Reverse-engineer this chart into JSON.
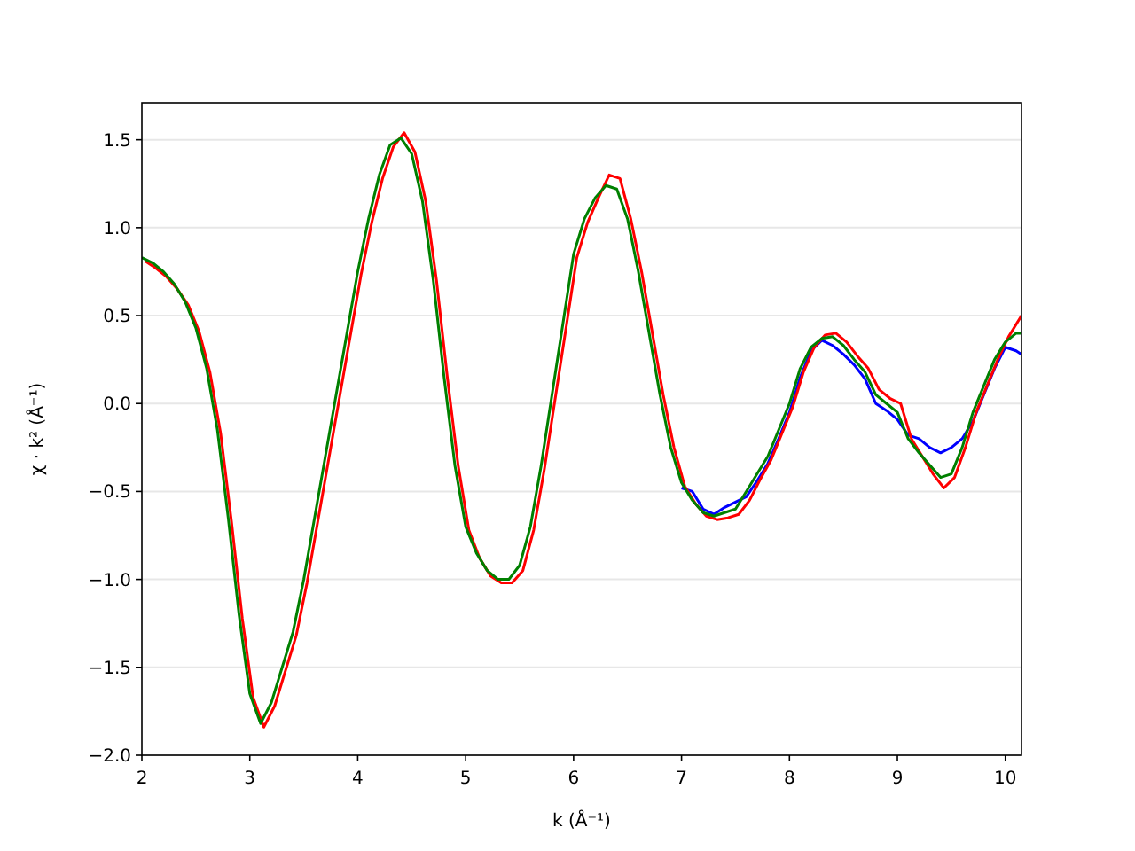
{
  "chart_data": {
    "type": "line",
    "xlabel": "k (Å⁻¹)",
    "ylabel": "χ · k² (Å⁻¹)",
    "x": [
      2.0,
      2.1,
      2.2,
      2.3,
      2.4,
      2.5,
      2.6,
      2.7,
      2.8,
      2.9,
      3.0,
      3.1,
      3.2,
      3.3,
      3.4,
      3.5,
      3.6,
      3.7,
      3.8,
      3.9,
      4.0,
      4.1,
      4.2,
      4.3,
      4.4,
      4.5,
      4.6,
      4.7,
      4.8,
      4.9,
      5.0,
      5.1,
      5.2,
      5.3,
      5.4,
      5.5,
      5.6,
      5.7,
      5.8,
      5.9,
      6.0,
      6.1,
      6.2,
      6.3,
      6.4,
      6.5,
      6.6,
      6.7,
      6.8,
      6.9,
      7.0,
      7.1,
      7.2,
      7.3,
      7.4,
      7.5,
      7.6,
      7.7,
      7.8,
      7.9,
      8.0,
      8.1,
      8.2,
      8.3,
      8.4,
      8.5,
      8.6,
      8.7,
      8.8,
      8.9,
      9.0,
      9.1,
      9.2,
      9.3,
      9.4,
      9.5,
      9.6,
      9.7,
      9.8,
      9.9,
      10.0,
      10.1,
      10.15
    ],
    "series": [
      {
        "color": "#0000ff",
        "values": [
          null,
          null,
          null,
          null,
          null,
          null,
          null,
          null,
          null,
          null,
          null,
          null,
          null,
          null,
          null,
          null,
          null,
          null,
          null,
          null,
          null,
          null,
          null,
          null,
          null,
          null,
          null,
          null,
          null,
          null,
          null,
          null,
          null,
          null,
          null,
          null,
          null,
          null,
          null,
          null,
          null,
          null,
          null,
          null,
          null,
          null,
          null,
          null,
          null,
          null,
          -0.48,
          -0.5,
          -0.6,
          -0.63,
          -0.59,
          -0.56,
          -0.53,
          -0.44,
          -0.34,
          -0.2,
          -0.05,
          0.15,
          0.3,
          0.36,
          0.33,
          0.28,
          0.22,
          0.14,
          0.0,
          -0.04,
          -0.09,
          -0.18,
          -0.2,
          -0.25,
          -0.28,
          -0.25,
          -0.2,
          -0.1,
          0.05,
          0.2,
          0.32,
          0.3,
          0.28
        ]
      },
      {
        "color": "#ff0000",
        "x": [
          2.03,
          2.13,
          2.23,
          2.33,
          2.43,
          2.53,
          2.63,
          2.73,
          2.83,
          2.93,
          3.03,
          3.13,
          3.23,
          3.33,
          3.43,
          3.53,
          3.63,
          3.73,
          3.83,
          3.93,
          4.03,
          4.13,
          4.23,
          4.33,
          4.43,
          4.53,
          4.63,
          4.73,
          4.83,
          4.93,
          5.03,
          5.13,
          5.23,
          5.33,
          5.43,
          5.53,
          5.63,
          5.73,
          5.83,
          5.93,
          6.03,
          6.13,
          6.23,
          6.33,
          6.43,
          6.53,
          6.63,
          6.73,
          6.83,
          6.93,
          7.03,
          7.13,
          7.23,
          7.33,
          7.43,
          7.53,
          7.63,
          7.73,
          7.83,
          7.93,
          8.03,
          8.13,
          8.23,
          8.33,
          8.43,
          8.53,
          8.63,
          8.73,
          8.83,
          8.93,
          9.03,
          9.13,
          9.23,
          9.33,
          9.43,
          9.53,
          9.63,
          9.73,
          9.83,
          9.93,
          10.03,
          10.13,
          10.15
        ],
        "values": [
          0.81,
          0.77,
          0.72,
          0.65,
          0.56,
          0.41,
          0.18,
          -0.17,
          -0.67,
          -1.22,
          -1.67,
          -1.84,
          -1.72,
          -1.52,
          -1.32,
          -1.02,
          -0.67,
          -0.32,
          0.03,
          0.38,
          0.73,
          1.03,
          1.28,
          1.46,
          1.54,
          1.43,
          1.15,
          0.7,
          0.15,
          -0.35,
          -0.72,
          -0.88,
          -0.98,
          -1.02,
          -1.02,
          -0.95,
          -0.72,
          -0.37,
          0.03,
          0.43,
          0.83,
          1.03,
          1.17,
          1.3,
          1.28,
          1.05,
          0.75,
          0.4,
          0.05,
          -0.25,
          -0.47,
          -0.57,
          -0.64,
          -0.66,
          -0.65,
          -0.63,
          -0.55,
          -0.43,
          -0.32,
          -0.17,
          -0.02,
          0.18,
          0.32,
          0.39,
          0.4,
          0.35,
          0.27,
          0.2,
          0.08,
          0.03,
          0.0,
          -0.2,
          -0.3,
          -0.4,
          -0.48,
          -0.42,
          -0.25,
          -0.05,
          0.1,
          0.25,
          0.38,
          0.48,
          0.5
        ]
      },
      {
        "color": "#008000",
        "values": [
          0.83,
          0.8,
          0.75,
          0.68,
          0.58,
          0.43,
          0.2,
          -0.15,
          -0.65,
          -1.2,
          -1.65,
          -1.82,
          -1.7,
          -1.5,
          -1.3,
          -1.0,
          -0.65,
          -0.3,
          0.05,
          0.4,
          0.75,
          1.05,
          1.3,
          1.47,
          1.51,
          1.42,
          1.15,
          0.7,
          0.15,
          -0.35,
          -0.7,
          -0.85,
          -0.95,
          -1.0,
          -1.0,
          -0.92,
          -0.7,
          -0.35,
          0.05,
          0.45,
          0.85,
          1.05,
          1.17,
          1.24,
          1.22,
          1.05,
          0.75,
          0.4,
          0.05,
          -0.25,
          -0.45,
          -0.55,
          -0.62,
          -0.64,
          -0.62,
          -0.6,
          -0.5,
          -0.4,
          -0.3,
          -0.15,
          0.0,
          0.2,
          0.32,
          0.37,
          0.38,
          0.33,
          0.25,
          0.18,
          0.05,
          0.0,
          -0.05,
          -0.2,
          -0.28,
          -0.35,
          -0.42,
          -0.4,
          -0.25,
          -0.05,
          0.1,
          0.25,
          0.35,
          0.4,
          0.4
        ]
      }
    ],
    "xlim": [
      2,
      10.15
    ],
    "ylim": [
      -2,
      1.71
    ],
    "xticks": [
      2,
      3,
      4,
      5,
      6,
      7,
      8,
      9,
      10
    ],
    "yticks": [
      {
        "value": -2,
        "label": "−2.0"
      },
      {
        "value": -1.5,
        "label": "−1.5"
      },
      {
        "value": -1,
        "label": "−1.0"
      },
      {
        "value": -0.5,
        "label": "−0.5"
      },
      {
        "value": 0,
        "label": "0.0"
      },
      {
        "value": 0.5,
        "label": "0.5"
      },
      {
        "value": 1,
        "label": "1.0"
      },
      {
        "value": 1.5,
        "label": "1.5"
      }
    ],
    "grid": "y",
    "line_style": "solid",
    "marker": "none"
  }
}
